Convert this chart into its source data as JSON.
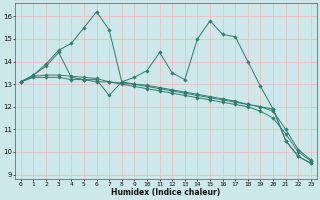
{
  "xlabel": "Humidex (Indice chaleur)",
  "xlim": [
    -0.5,
    23.5
  ],
  "ylim": [
    8.8,
    16.6
  ],
  "yticks": [
    9,
    10,
    11,
    12,
    13,
    14,
    15,
    16
  ],
  "xticks": [
    0,
    1,
    2,
    3,
    4,
    5,
    6,
    7,
    8,
    9,
    10,
    11,
    12,
    13,
    14,
    15,
    16,
    17,
    18,
    19,
    20,
    21,
    22,
    23
  ],
  "bg_color": "#cce8e8",
  "grid_color": "#f5b8b8",
  "line_color": "#2e7d6e",
  "lines": [
    {
      "x": [
        0,
        1,
        2,
        3,
        4,
        5,
        6,
        7,
        8,
        9,
        10,
        11,
        12,
        13,
        14,
        15,
        16,
        17,
        18,
        19,
        20,
        21,
        22,
        23
      ],
      "y": [
        13.1,
        13.4,
        13.9,
        14.5,
        14.8,
        15.5,
        16.2,
        15.4,
        13.1,
        13.3,
        13.6,
        14.4,
        13.5,
        13.2,
        15.0,
        15.8,
        15.2,
        15.1,
        14.0,
        12.9,
        11.9,
        10.5,
        9.8,
        9.5
      ]
    },
    {
      "x": [
        0,
        1,
        2,
        3,
        4,
        5,
        6,
        7,
        8,
        9,
        10,
        11,
        12,
        13,
        14,
        15,
        16,
        17,
        18,
        19,
        20,
        21,
        22,
        23
      ],
      "y": [
        13.1,
        13.3,
        13.3,
        13.3,
        13.2,
        13.2,
        13.1,
        13.1,
        13.0,
        12.9,
        12.8,
        12.7,
        12.6,
        12.5,
        12.4,
        12.3,
        12.2,
        12.1,
        12.0,
        11.8,
        11.5,
        10.8,
        10.0,
        9.6
      ]
    },
    {
      "x": [
        0,
        1,
        2,
        3,
        4,
        5,
        6,
        7,
        8,
        9,
        10,
        11,
        12,
        13,
        14,
        15,
        16,
        17,
        18,
        19,
        20,
        21,
        22,
        23
      ],
      "y": [
        13.1,
        13.35,
        13.4,
        13.4,
        13.35,
        13.3,
        13.25,
        13.1,
        13.05,
        13.0,
        12.95,
        12.85,
        12.75,
        12.65,
        12.55,
        12.45,
        12.35,
        12.25,
        12.1,
        12.0,
        11.8,
        11.0,
        10.1,
        9.65
      ]
    },
    {
      "x": [
        0,
        1,
        2,
        3,
        4,
        5,
        6,
        7,
        8,
        9,
        10,
        11,
        12,
        13,
        14,
        15,
        16,
        17,
        18,
        19,
        20,
        21,
        22,
        23
      ],
      "y": [
        13.1,
        13.4,
        13.8,
        14.4,
        13.3,
        13.2,
        13.2,
        12.5,
        13.1,
        13.0,
        12.9,
        12.8,
        12.7,
        12.6,
        12.5,
        12.4,
        12.3,
        12.2,
        12.1,
        12.0,
        11.9,
        10.5,
        9.8,
        9.5
      ]
    }
  ]
}
